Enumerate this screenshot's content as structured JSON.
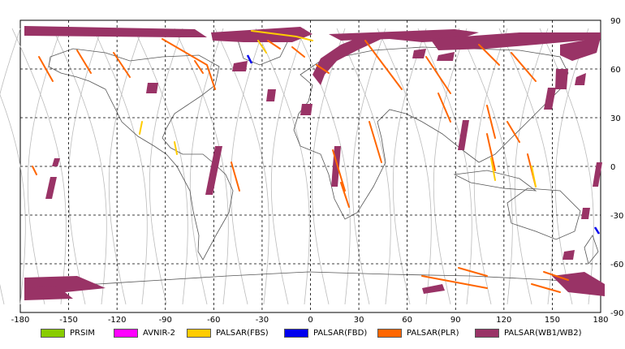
{
  "map": {
    "lon_ticks": [
      "-180",
      "-150",
      "-120",
      "-90",
      "-60",
      "-30",
      "0",
      "30",
      "60",
      "90",
      "120",
      "150",
      "180"
    ],
    "lat_ticks": [
      "90",
      "60",
      "30",
      "0",
      "-30",
      "-60",
      "-90"
    ]
  },
  "legend": [
    {
      "label": "PRSIM",
      "color": "#88cc00"
    },
    {
      "label": "AVNIR-2",
      "color": "#ff00ff"
    },
    {
      "label": "PALSAR(FBS)",
      "color": "#ffcc00"
    },
    {
      "label": "PALSAR(FBD)",
      "color": "#0000ee"
    },
    {
      "label": "PALSAR(PLR)",
      "color": "#ff6600"
    },
    {
      "label": "PALSAR(WB1/WB2)",
      "color": "#993366"
    }
  ]
}
